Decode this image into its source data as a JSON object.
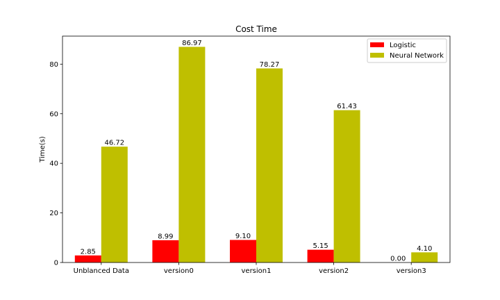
{
  "chart_data": {
    "type": "bar",
    "title": "Cost Time",
    "xlabel": "",
    "ylabel": "Time(s)",
    "categories": [
      "Unblanced Data",
      "version0",
      "version1",
      "version2",
      "version3"
    ],
    "series": [
      {
        "name": "Logistic",
        "color": "#ff0000",
        "values": [
          2.85,
          8.99,
          9.1,
          5.15,
          0.0
        ],
        "labels": [
          "2.85",
          "8.99",
          "9.10",
          "5.15",
          "0.00"
        ]
      },
      {
        "name": "Neural Network",
        "color": "#bfbf00",
        "values": [
          46.72,
          86.97,
          78.27,
          61.43,
          4.1
        ],
        "labels": [
          "46.72",
          "86.97",
          "78.27",
          "61.43",
          "4.10"
        ]
      }
    ],
    "ylim": [
      0,
      91.3
    ],
    "yticks": [
      0,
      20,
      40,
      60,
      80
    ],
    "legend": "top-right",
    "grid": false
  }
}
